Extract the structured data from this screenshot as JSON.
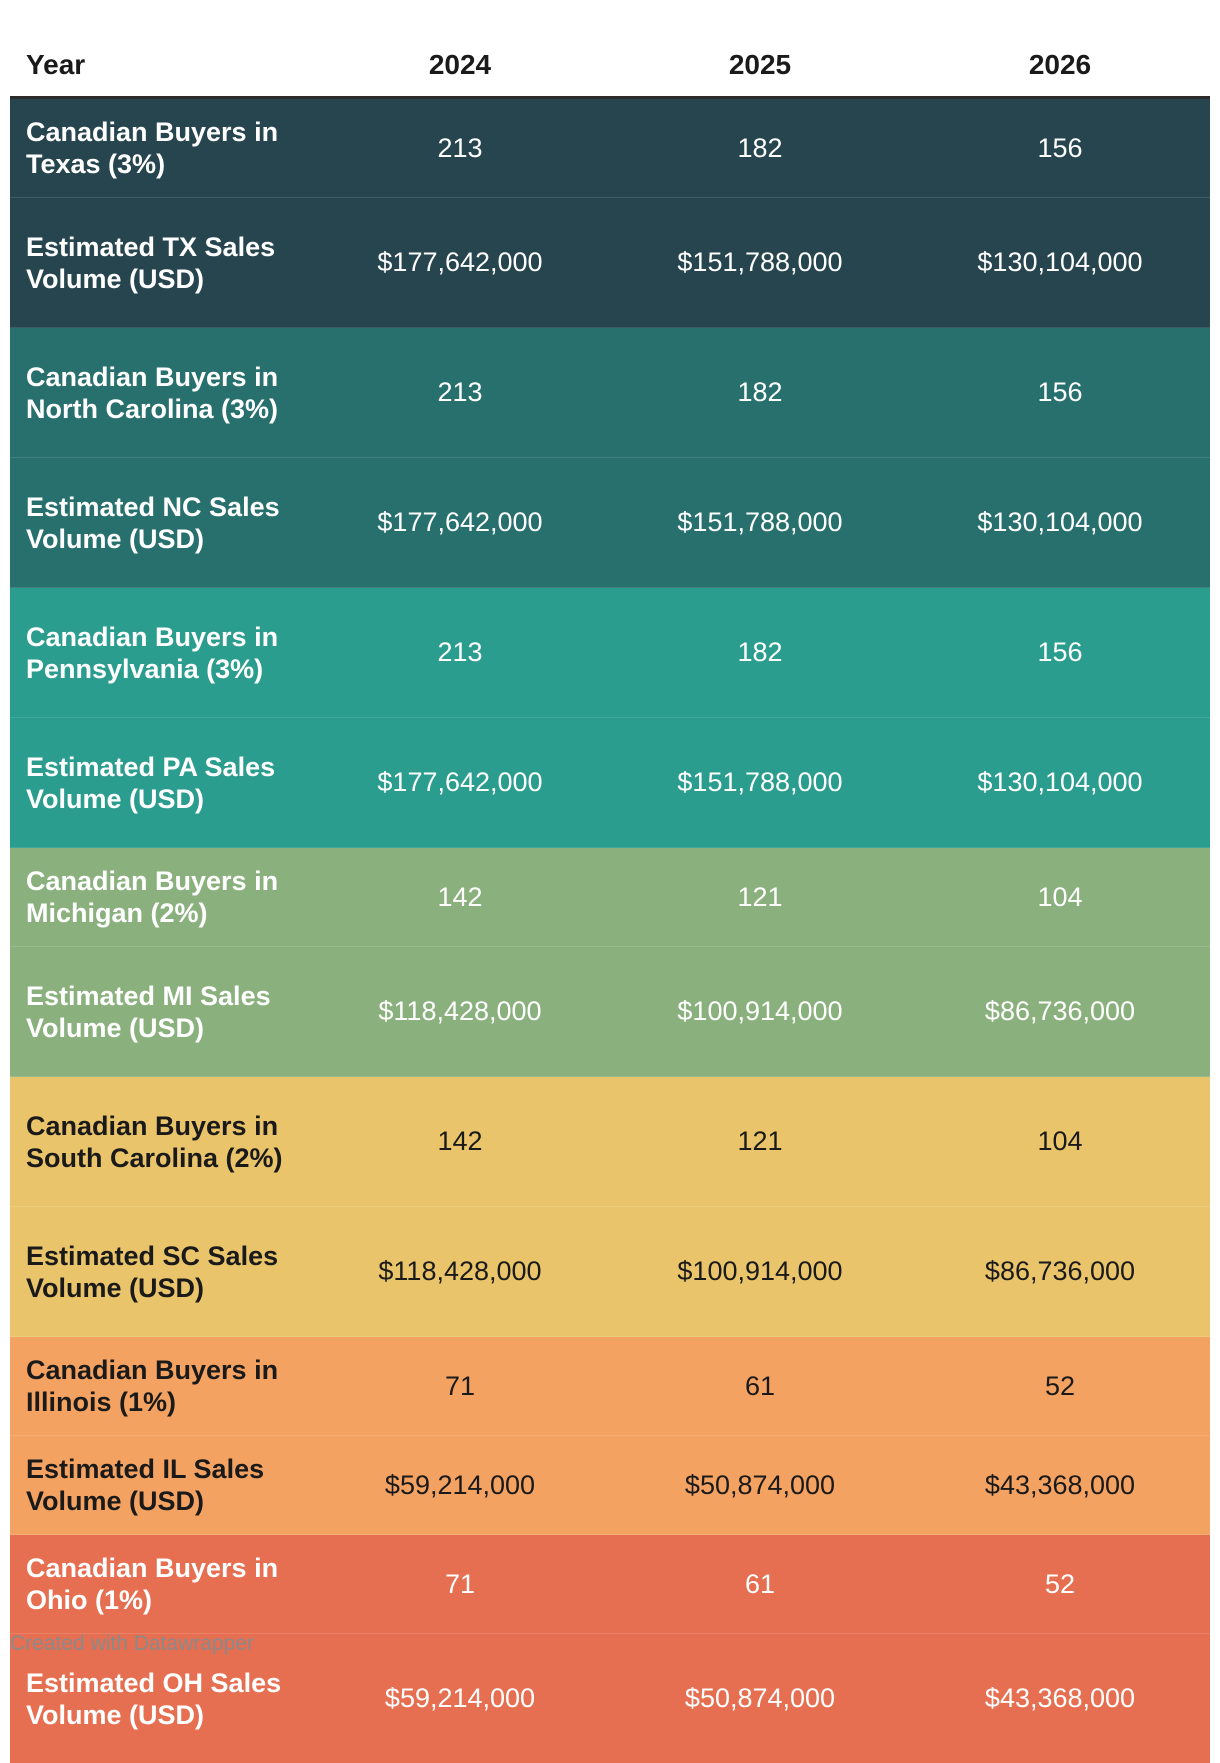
{
  "chart_data": {
    "type": "table",
    "columns": [
      "Year",
      "2024",
      "2025",
      "2026"
    ],
    "rows": [
      {
        "label": "Canadian Buyers in Texas (3%)",
        "values": [
          "213",
          "182",
          "156"
        ],
        "bg": "#27454f",
        "fg": "#ffffff",
        "size": "short"
      },
      {
        "label": "Estimated TX Sales Volume (USD)",
        "values": [
          "$177,642,000",
          "$151,788,000",
          "$130,104,000"
        ],
        "bg": "#27454f",
        "fg": "#ffffff",
        "size": "tall"
      },
      {
        "label": "Canadian Buyers in North Carolina (3%)",
        "values": [
          "213",
          "182",
          "156"
        ],
        "bg": "#27706e",
        "fg": "#ffffff",
        "size": "tall"
      },
      {
        "label": "Estimated NC Sales Volume (USD)",
        "values": [
          "$177,642,000",
          "$151,788,000",
          "$130,104,000"
        ],
        "bg": "#27706e",
        "fg": "#ffffff",
        "size": "tall"
      },
      {
        "label": "Canadian Buyers in Pennsylvania (3%)",
        "values": [
          "213",
          "182",
          "156"
        ],
        "bg": "#2a9d8f",
        "fg": "#ffffff",
        "size": "tall"
      },
      {
        "label": "Estimated PA Sales Volume (USD)",
        "values": [
          "$177,642,000",
          "$151,788,000",
          "$130,104,000"
        ],
        "bg": "#2a9d8f",
        "fg": "#ffffff",
        "size": "tall"
      },
      {
        "label": "Canadian Buyers in Michigan (2%)",
        "values": [
          "142",
          "121",
          "104"
        ],
        "bg": "#8ab17d",
        "fg": "#ffffff",
        "size": "short"
      },
      {
        "label": "Estimated MI Sales Volume (USD)",
        "values": [
          "$118,428,000",
          "$100,914,000",
          "$86,736,000"
        ],
        "bg": "#8ab17d",
        "fg": "#ffffff",
        "size": "tall"
      },
      {
        "label": "Canadian Buyers in South Carolina (2%)",
        "values": [
          "142",
          "121",
          "104"
        ],
        "bg": "#e9c46a",
        "fg": "#1a1a1a",
        "size": "tall"
      },
      {
        "label": "Estimated SC Sales Volume (USD)",
        "values": [
          "$118,428,000",
          "$100,914,000",
          "$86,736,000"
        ],
        "bg": "#e9c46a",
        "fg": "#1a1a1a",
        "size": "tall"
      },
      {
        "label": "Canadian Buyers in Illinois (1%)",
        "values": [
          "71",
          "61",
          "52"
        ],
        "bg": "#f4a261",
        "fg": "#1a1a1a",
        "size": "short"
      },
      {
        "label": "Estimated IL Sales Volume (USD)",
        "values": [
          "$59,214,000",
          "$50,874,000",
          "$43,368,000"
        ],
        "bg": "#f4a261",
        "fg": "#1a1a1a",
        "size": "short"
      },
      {
        "label": "Canadian Buyers in Ohio (1%)",
        "values": [
          "71",
          "61",
          "52"
        ],
        "bg": "#e76f51",
        "fg": "#ffffff",
        "size": "short"
      },
      {
        "label": "Estimated OH Sales Volume (USD)",
        "values": [
          "$59,214,000",
          "$50,874,000",
          "$43,368,000"
        ],
        "bg": "#e76f51",
        "fg": "#ffffff",
        "size": "tall"
      }
    ]
  },
  "footer": {
    "credit": "Created with Datawrapper"
  }
}
